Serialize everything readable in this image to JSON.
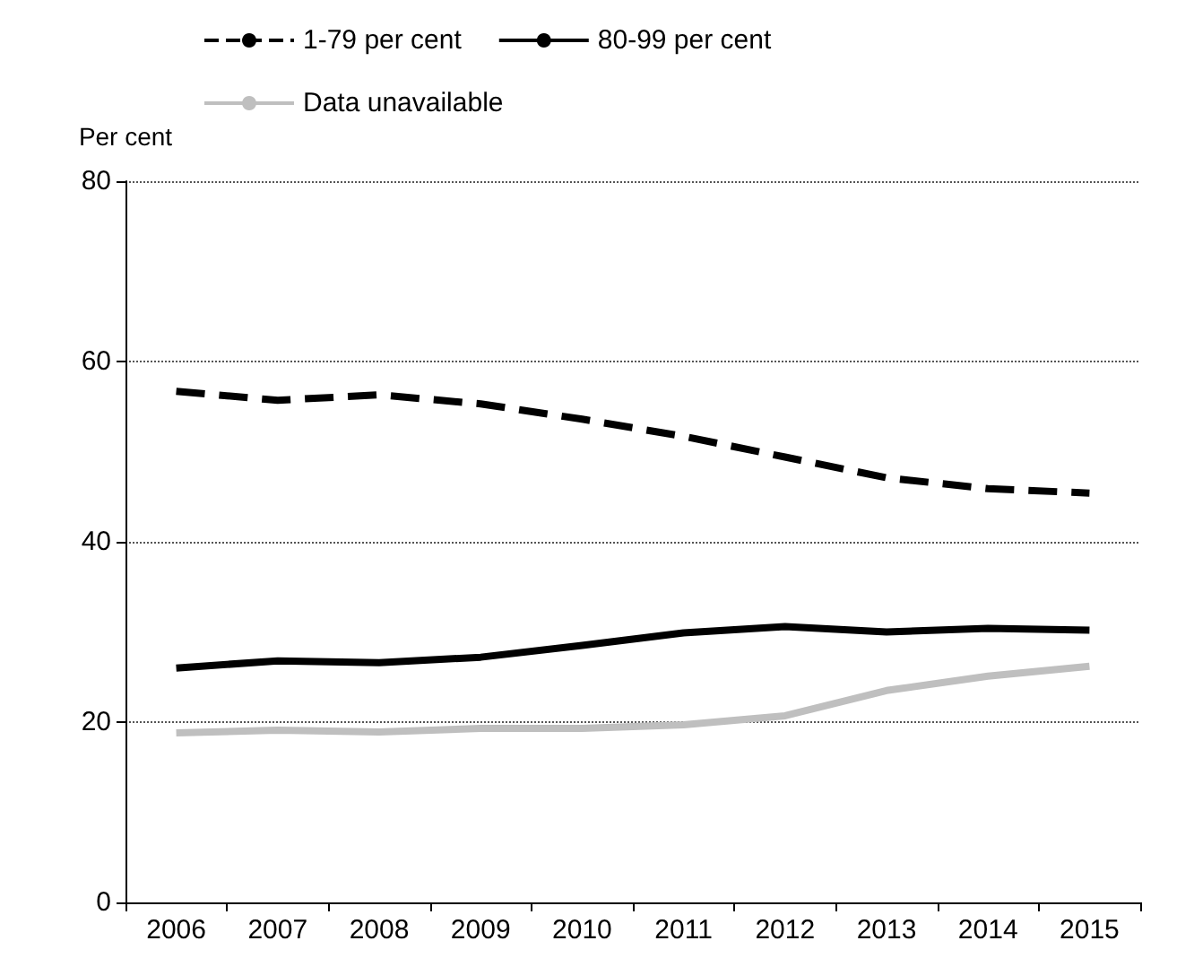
{
  "chart_data": {
    "type": "line",
    "ylabel": "Per cent",
    "categories": [
      "2006",
      "2007",
      "2008",
      "2009",
      "2010",
      "2011",
      "2012",
      "2013",
      "2014",
      "2015"
    ],
    "series": [
      {
        "name": "1-79 per cent",
        "color": "#000000",
        "line_style": "dashed",
        "values": [
          56.7,
          55.7,
          56.3,
          55.3,
          53.6,
          51.7,
          49.4,
          47.1,
          45.9,
          45.4
        ]
      },
      {
        "name": "80-99 per cent",
        "color": "#000000",
        "line_style": "solid",
        "values": [
          26.0,
          26.8,
          26.6,
          27.2,
          28.5,
          29.9,
          30.6,
          30.0,
          30.4,
          30.2
        ]
      },
      {
        "name": "Data unavailable",
        "color": "#bfbfbf",
        "line_style": "solid",
        "values": [
          18.8,
          19.1,
          18.9,
          19.3,
          19.3,
          19.7,
          20.7,
          23.5,
          25.1,
          26.2
        ]
      }
    ],
    "ylim": [
      0,
      80
    ],
    "yticks": [
      0,
      20,
      40,
      60,
      80
    ],
    "grid": "y",
    "legend": "top",
    "marker": "none"
  }
}
